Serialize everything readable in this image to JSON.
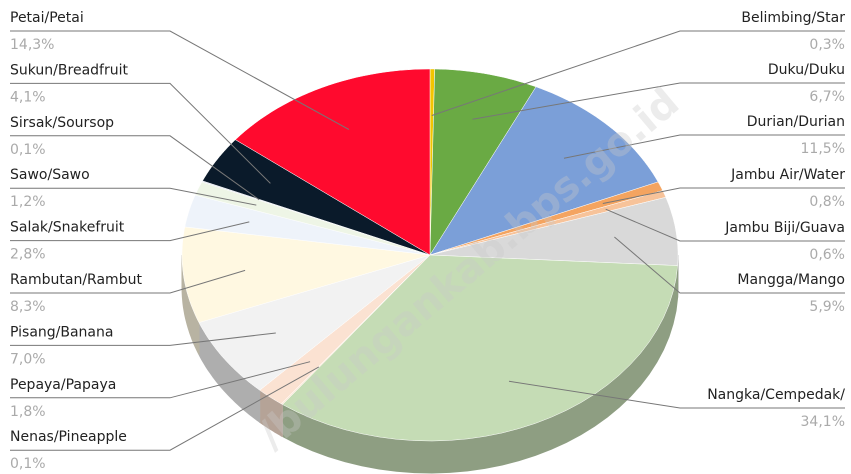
{
  "chart_data": {
    "type": "pie3d",
    "categories": [
      "Belimbing/Star",
      "Duku/Duku",
      "Durian/Durian",
      "Jambu Air/Water",
      "Jambu Biji/Guava",
      "Mangga/Mango",
      "Nangka/Cempedak/",
      "Nenas/Pineapple",
      "Pepaya/Papaya",
      "Pisang/Banana",
      "Rambutan/Rambut",
      "Salak/Snakefruit",
      "Sawo/Sawo",
      "Sirsak/Soursop",
      "Sukun/Breadfruit",
      "Petai/Petai"
    ],
    "values": [
      0.3,
      6.7,
      11.5,
      0.8,
      0.6,
      5.9,
      34.1,
      0.1,
      1.8,
      7.0,
      8.3,
      2.8,
      1.2,
      0.1,
      4.1,
      14.3
    ],
    "value_labels": [
      "0,3%",
      "6,7%",
      "11,5%",
      "0,8%",
      "0,6%",
      "5,9%",
      "34,1%",
      "0,1%",
      "1,8%",
      "7,0%",
      "8,3%",
      "2,8%",
      "1,2%",
      "0,1%",
      "4,1%",
      "14,3%"
    ],
    "colors": [
      "#f2c500",
      "#6aaa44",
      "#7b9fd8",
      "#f4a460",
      "#f7c39a",
      "#d9d9d9",
      "#c5dcb5",
      "#fde9d9",
      "#fbe2d2",
      "#f2f2f2",
      "#fff8e1",
      "#eef3fa",
      "#eef5e6",
      "#dde2ee",
      "#0a1a2a",
      "#ff0a2e"
    ],
    "watermark": "/bulungankab.bps.go.id"
  }
}
